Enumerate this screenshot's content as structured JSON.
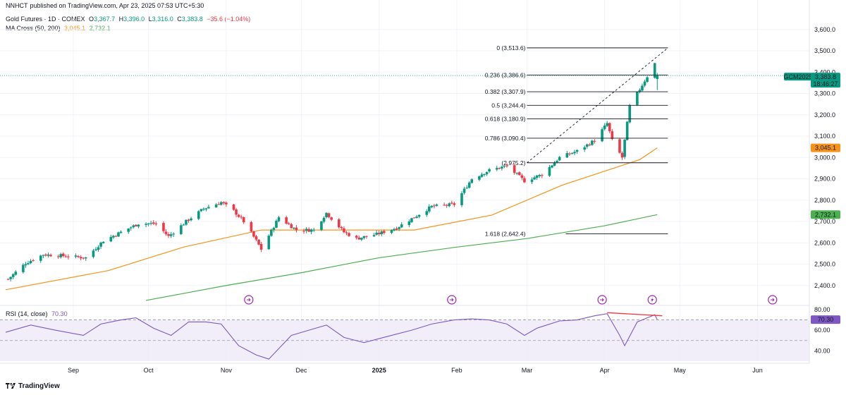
{
  "publisher": {
    "name": "NNHCT",
    "text": "published on TradingView.com, Apr 23, 2025 07:53 UTC+5:30"
  },
  "legend": {
    "symbol": "Gold Futures · 1D · COMEX",
    "o_label": "O",
    "o": "3,367.7",
    "h_label": "H",
    "h": "3,396.0",
    "l_label": "L",
    "l": "3,316.0",
    "c_label": "C",
    "c": "3,383.8",
    "change": "−35.6 (−1.04%)",
    "ma_title": "MA Cross (50, 200)",
    "ma50": "3,045.1",
    "ma200": "2,732.1"
  },
  "rsi_legend": {
    "title": "RSI (14, close)",
    "value": "70.30"
  },
  "price_tags": {
    "symbol": "GCM2025",
    "price": "3,383.8",
    "countdown": "18:46:27",
    "ma50": "3,045.1",
    "ma200": "2,732.1",
    "rsi": "70.30"
  },
  "footer": {
    "brand": "TradingView"
  },
  "colors": {
    "up": "#089981",
    "down": "#f23645",
    "ma50": "#f7931a",
    "ma200": "#4caf50",
    "rsi": "#7e57c2",
    "rsi_band": "#ede7f6",
    "fib": "#131722"
  },
  "icons": [
    "lightning-icon",
    "arrow-right-circle-icon"
  ],
  "chart_data": {
    "type": "candlestick",
    "title": "Gold Futures · 1D · COMEX",
    "x_axis": {
      "ticks": [
        "Sep",
        "Oct",
        "Nov",
        "Dec",
        "2025",
        "Feb",
        "Mar",
        "Apr",
        "May",
        "Jun"
      ],
      "tick_dates": [
        "2024-09-01",
        "2024-10-01",
        "2024-11-01",
        "2024-12-01",
        "2025-01-01",
        "2025-02-01",
        "2025-03-01",
        "2025-04-01",
        "2025-05-01",
        "2025-06-01"
      ]
    },
    "y_axis": {
      "ticks": [
        "2,400.0",
        "2,500.0",
        "2,600.0",
        "2,700.0",
        "2,800.0",
        "2,900.0",
        "3,000.0",
        "3,100.0",
        "3,200.0",
        "3,300.0",
        "3,400.0",
        "3,500.0",
        "3,600.0"
      ],
      "ylim": [
        2330,
        3640
      ]
    },
    "close_path": [
      [
        "2024-08-06",
        2430
      ],
      [
        "2024-08-13",
        2505
      ],
      [
        "2024-08-20",
        2545
      ],
      [
        "2024-08-27",
        2540
      ],
      [
        "2024-09-06",
        2530
      ],
      [
        "2024-09-13",
        2610
      ],
      [
        "2024-09-20",
        2650
      ],
      [
        "2024-09-27",
        2690
      ],
      [
        "2024-10-04",
        2690
      ],
      [
        "2024-10-09",
        2630
      ],
      [
        "2024-10-16",
        2700
      ],
      [
        "2024-10-23",
        2760
      ],
      [
        "2024-10-30",
        2790
      ],
      [
        "2024-11-04",
        2750
      ],
      [
        "2024-11-08",
        2700
      ],
      [
        "2024-11-13",
        2610
      ],
      [
        "2024-11-15",
        2570
      ],
      [
        "2024-11-22",
        2720
      ],
      [
        "2024-11-29",
        2660
      ],
      [
        "2024-12-06",
        2660
      ],
      [
        "2024-12-11",
        2740
      ],
      [
        "2024-12-18",
        2650
      ],
      [
        "2024-12-23",
        2620
      ],
      [
        "2024-12-31",
        2640
      ],
      [
        "2025-01-08",
        2670
      ],
      [
        "2025-01-15",
        2720
      ],
      [
        "2025-01-22",
        2770
      ],
      [
        "2025-01-31",
        2780
      ],
      [
        "2025-02-07",
        2900
      ],
      [
        "2025-02-14",
        2940
      ],
      [
        "2025-02-21",
        2960
      ],
      [
        "2025-02-28",
        2890
      ],
      [
        "2025-03-07",
        2920
      ],
      [
        "2025-03-14",
        3000
      ],
      [
        "2025-03-21",
        3030
      ],
      [
        "2025-03-28",
        3080
      ],
      [
        "2025-04-02",
        3160
      ],
      [
        "2025-04-04",
        3080
      ],
      [
        "2025-04-08",
        3000
      ],
      [
        "2025-04-11",
        3240
      ],
      [
        "2025-04-16",
        3340
      ],
      [
        "2025-04-21",
        3440
      ],
      [
        "2025-04-22",
        3384
      ]
    ],
    "last_candle": {
      "date": "2025-04-22",
      "open": 3367.7,
      "high": 3396.0,
      "low": 3316.0,
      "close": 3383.8
    },
    "ma50": [
      [
        "2024-08-05",
        2380
      ],
      [
        "2024-09-15",
        2470
      ],
      [
        "2024-10-15",
        2580
      ],
      [
        "2024-11-15",
        2660
      ],
      [
        "2024-12-15",
        2660
      ],
      [
        "2025-01-15",
        2660
      ],
      [
        "2025-02-15",
        2730
      ],
      [
        "2025-03-15",
        2870
      ],
      [
        "2025-04-15",
        2990
      ],
      [
        "2025-04-22",
        3045.1
      ]
    ],
    "ma200": [
      [
        "2024-09-30",
        2330
      ],
      [
        "2024-11-01",
        2400
      ],
      [
        "2024-12-01",
        2460
      ],
      [
        "2025-01-01",
        2530
      ],
      [
        "2025-02-01",
        2580
      ],
      [
        "2025-03-01",
        2620
      ],
      [
        "2025-04-01",
        2680
      ],
      [
        "2025-04-22",
        2732.1
      ]
    ],
    "fibonacci": [
      {
        "label": "0 (3,513.6)",
        "value": 3513.6
      },
      {
        "label": "0.236 (3,386.6)",
        "value": 3386.6
      },
      {
        "label": "0.382 (3,307.9)",
        "value": 3307.9
      },
      {
        "label": "0.5 (3,244.4)",
        "value": 3244.4
      },
      {
        "label": "0.618 (3,180.9)",
        "value": 3180.9
      },
      {
        "label": "0.786 (3,090.4)",
        "value": 3090.4
      },
      {
        "label": "(2,975.2)",
        "value": 2975.2
      },
      {
        "label": "1.618 (2,642.4)",
        "value": 2642.4
      }
    ],
    "fib_start_date": "2025-03-01",
    "trendline": [
      [
        "2025-03-01",
        2975.2
      ],
      [
        "2025-04-22",
        3513.6
      ]
    ],
    "rsi": {
      "y_ticks": [
        "40.00",
        "60.00",
        "80.00"
      ],
      "ylim": [
        30,
        82
      ],
      "levels": [
        70,
        50
      ],
      "values": [
        [
          "2024-08-05",
          58
        ],
        [
          "2024-08-15",
          65
        ],
        [
          "2024-08-25",
          60
        ],
        [
          "2024-09-05",
          55
        ],
        [
          "2024-09-12",
          66
        ],
        [
          "2024-09-20",
          70
        ],
        [
          "2024-09-26",
          72
        ],
        [
          "2024-10-03",
          62
        ],
        [
          "2024-10-10",
          55
        ],
        [
          "2024-10-17",
          68
        ],
        [
          "2024-10-24",
          68
        ],
        [
          "2024-10-30",
          66
        ],
        [
          "2024-11-06",
          45
        ],
        [
          "2024-11-13",
          36
        ],
        [
          "2024-11-18",
          32
        ],
        [
          "2024-11-27",
          55
        ],
        [
          "2024-12-04",
          60
        ],
        [
          "2024-12-11",
          65
        ],
        [
          "2024-12-18",
          53
        ],
        [
          "2024-12-26",
          48
        ],
        [
          "2025-01-06",
          55
        ],
        [
          "2025-01-14",
          60
        ],
        [
          "2025-01-22",
          66
        ],
        [
          "2025-01-31",
          70
        ],
        [
          "2025-02-07",
          71
        ],
        [
          "2025-02-14",
          70
        ],
        [
          "2025-02-21",
          66
        ],
        [
          "2025-02-28",
          55
        ],
        [
          "2025-03-05",
          62
        ],
        [
          "2025-03-14",
          69
        ],
        [
          "2025-03-21",
          70
        ],
        [
          "2025-03-28",
          74
        ],
        [
          "2025-04-02",
          76
        ],
        [
          "2025-04-07",
          55
        ],
        [
          "2025-04-09",
          45
        ],
        [
          "2025-04-14",
          68
        ],
        [
          "2025-04-18",
          72
        ],
        [
          "2025-04-21",
          75
        ],
        [
          "2025-04-22",
          70.3
        ]
      ],
      "divergence": [
        [
          "2025-04-02",
          77
        ],
        [
          "2025-04-24",
          74
        ]
      ]
    },
    "event_marker_dates": [
      "2024-11-10",
      "2025-01-30",
      "2025-03-31",
      "2025-04-20",
      "2025-06-07"
    ],
    "legend_entries": [
      "MA Cross (50, 200)",
      "RSI (14, close)"
    ]
  }
}
